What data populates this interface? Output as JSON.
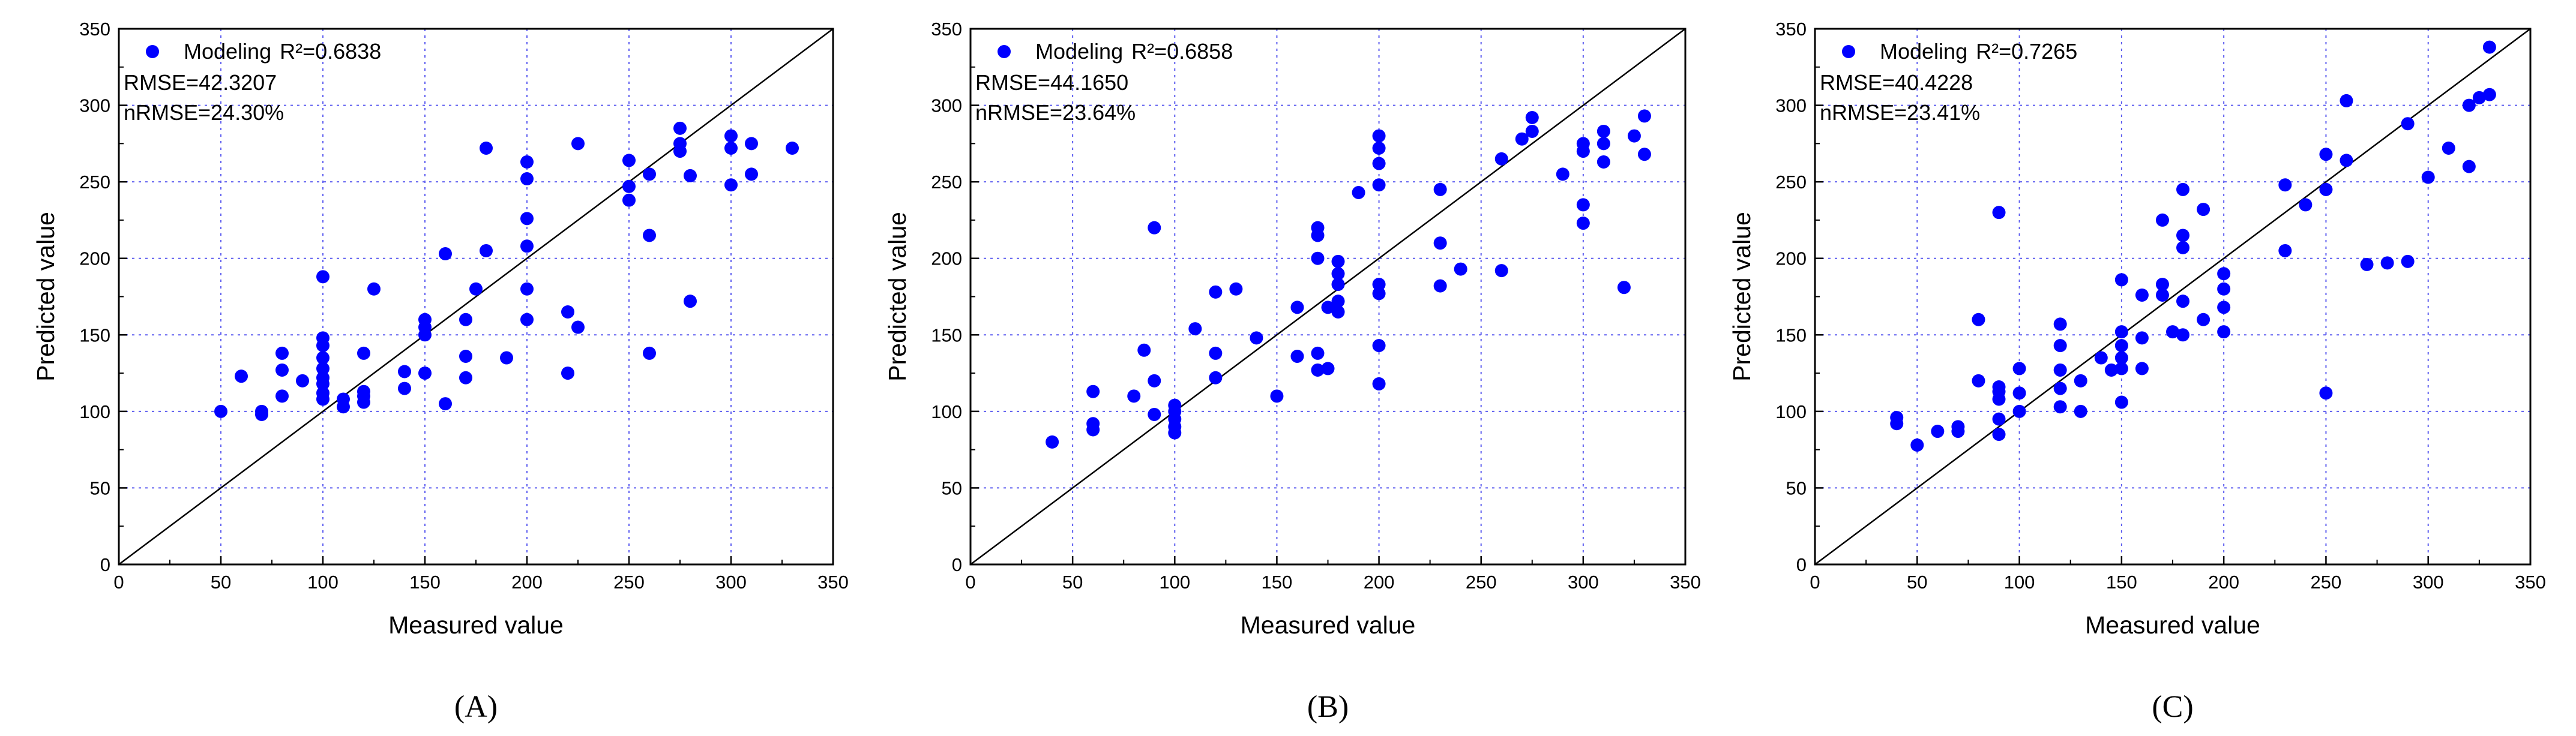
{
  "chart_data": [
    {
      "type": "scatter",
      "panel_label": "(A)",
      "xlabel": "Measured value",
      "ylabel": "Predicted value",
      "xlim": [
        0,
        350
      ],
      "ylim": [
        0,
        350
      ],
      "xticks": [
        "0",
        "50",
        "100",
        "150",
        "200",
        "250",
        "300",
        "350"
      ],
      "yticks": [
        "0",
        "50",
        "100",
        "150",
        "200",
        "250",
        "300",
        "350"
      ],
      "grid": true,
      "legend": "top-left",
      "legend_label": "Modeling",
      "r2_text": "R²=0.6838",
      "rmse_text": "RMSE=42.3207",
      "nrmse_text": "nRMSE=24.30%",
      "marker_color": "#0000ff",
      "reference_line": "1:1",
      "points": [
        [
          50,
          100
        ],
        [
          60,
          123
        ],
        [
          70,
          98
        ],
        [
          70,
          100
        ],
        [
          80,
          110
        ],
        [
          80,
          127
        ],
        [
          80,
          138
        ],
        [
          90,
          120
        ],
        [
          100,
          108
        ],
        [
          100,
          112
        ],
        [
          100,
          118
        ],
        [
          100,
          122
        ],
        [
          100,
          128
        ],
        [
          100,
          135
        ],
        [
          100,
          143
        ],
        [
          100,
          148
        ],
        [
          100,
          188
        ],
        [
          110,
          103
        ],
        [
          110,
          108
        ],
        [
          120,
          106
        ],
        [
          120,
          110
        ],
        [
          120,
          113
        ],
        [
          120,
          138
        ],
        [
          125,
          180
        ],
        [
          140,
          115
        ],
        [
          140,
          126
        ],
        [
          150,
          125
        ],
        [
          150,
          150
        ],
        [
          150,
          155
        ],
        [
          150,
          160
        ],
        [
          160,
          105
        ],
        [
          160,
          203
        ],
        [
          170,
          122
        ],
        [
          170,
          136
        ],
        [
          170,
          160
        ],
        [
          175,
          180
        ],
        [
          180,
          205
        ],
        [
          180,
          272
        ],
        [
          190,
          135
        ],
        [
          200,
          160
        ],
        [
          200,
          180
        ],
        [
          200,
          208
        ],
        [
          200,
          226
        ],
        [
          200,
          252
        ],
        [
          200,
          263
        ],
        [
          220,
          125
        ],
        [
          220,
          165
        ],
        [
          225,
          155
        ],
        [
          225,
          275
        ],
        [
          250,
          238
        ],
        [
          250,
          247
        ],
        [
          250,
          264
        ],
        [
          260,
          138
        ],
        [
          260,
          215
        ],
        [
          260,
          255
        ],
        [
          275,
          270
        ],
        [
          275,
          275
        ],
        [
          275,
          285
        ],
        [
          280,
          172
        ],
        [
          280,
          254
        ],
        [
          300,
          248
        ],
        [
          300,
          272
        ],
        [
          300,
          280
        ],
        [
          310,
          255
        ],
        [
          310,
          275
        ],
        [
          330,
          272
        ]
      ]
    },
    {
      "type": "scatter",
      "panel_label": "(B)",
      "xlabel": "Measured value",
      "ylabel": "Predicted value",
      "xlim": [
        0,
        350
      ],
      "ylim": [
        0,
        350
      ],
      "xticks": [
        "0",
        "50",
        "100",
        "150",
        "200",
        "250",
        "300",
        "350"
      ],
      "yticks": [
        "0",
        "50",
        "100",
        "150",
        "200",
        "250",
        "300",
        "350"
      ],
      "grid": true,
      "legend": "top-left",
      "legend_label": "Modeling",
      "r2_text": "R²=0.6858",
      "rmse_text": "RMSE=44.1650",
      "nrmse_text": "nRMSE=23.64%",
      "marker_color": "#0000ff",
      "reference_line": "1:1",
      "points": [
        [
          40,
          80
        ],
        [
          60,
          88
        ],
        [
          60,
          92
        ],
        [
          60,
          113
        ],
        [
          80,
          110
        ],
        [
          85,
          140
        ],
        [
          90,
          98
        ],
        [
          90,
          220
        ],
        [
          90,
          120
        ],
        [
          100,
          86
        ],
        [
          100,
          90
        ],
        [
          100,
          95
        ],
        [
          100,
          100
        ],
        [
          100,
          104
        ],
        [
          110,
          154
        ],
        [
          120,
          122
        ],
        [
          120,
          138
        ],
        [
          120,
          178
        ],
        [
          130,
          180
        ],
        [
          140,
          148
        ],
        [
          150,
          110
        ],
        [
          160,
          136
        ],
        [
          160,
          168
        ],
        [
          170,
          127
        ],
        [
          170,
          138
        ],
        [
          170,
          200
        ],
        [
          170,
          215
        ],
        [
          170,
          220
        ],
        [
          175,
          128
        ],
        [
          175,
          168
        ],
        [
          180,
          165
        ],
        [
          180,
          172
        ],
        [
          180,
          183
        ],
        [
          180,
          190
        ],
        [
          180,
          198
        ],
        [
          190,
          243
        ],
        [
          200,
          118
        ],
        [
          200,
          143
        ],
        [
          200,
          177
        ],
        [
          200,
          183
        ],
        [
          200,
          248
        ],
        [
          200,
          262
        ],
        [
          200,
          272
        ],
        [
          200,
          280
        ],
        [
          230,
          182
        ],
        [
          230,
          210
        ],
        [
          230,
          245
        ],
        [
          240,
          193
        ],
        [
          260,
          192
        ],
        [
          260,
          265
        ],
        [
          270,
          278
        ],
        [
          275,
          283
        ],
        [
          275,
          292
        ],
        [
          290,
          255
        ],
        [
          300,
          223
        ],
        [
          300,
          235
        ],
        [
          300,
          270
        ],
        [
          300,
          275
        ],
        [
          310,
          263
        ],
        [
          310,
          275
        ],
        [
          310,
          283
        ],
        [
          320,
          181
        ],
        [
          325,
          280
        ],
        [
          330,
          268
        ],
        [
          330,
          293
        ]
      ]
    },
    {
      "type": "scatter",
      "panel_label": "(C)",
      "xlabel": "Measured value",
      "ylabel": "Predicted value",
      "xlim": [
        0,
        350
      ],
      "ylim": [
        0,
        350
      ],
      "xticks": [
        "0",
        "50",
        "100",
        "150",
        "200",
        "250",
        "300",
        "350"
      ],
      "yticks": [
        "0",
        "50",
        "100",
        "150",
        "200",
        "250",
        "300",
        "350"
      ],
      "grid": true,
      "legend": "top-left",
      "legend_label": "Modeling",
      "r2_text": "R²=0.7265",
      "rmse_text": "RMSE=40.4228",
      "nrmse_text": "nRMSE=23.41%",
      "marker_color": "#0000ff",
      "reference_line": "1:1",
      "points": [
        [
          40,
          92
        ],
        [
          40,
          96
        ],
        [
          50,
          78
        ],
        [
          60,
          87
        ],
        [
          70,
          87
        ],
        [
          70,
          90
        ],
        [
          80,
          120
        ],
        [
          80,
          160
        ],
        [
          90,
          85
        ],
        [
          90,
          95
        ],
        [
          90,
          108
        ],
        [
          90,
          113
        ],
        [
          90,
          116
        ],
        [
          90,
          230
        ],
        [
          100,
          100
        ],
        [
          100,
          112
        ],
        [
          100,
          128
        ],
        [
          120,
          103
        ],
        [
          120,
          115
        ],
        [
          120,
          127
        ],
        [
          120,
          143
        ],
        [
          120,
          157
        ],
        [
          130,
          100
        ],
        [
          130,
          120
        ],
        [
          140,
          135
        ],
        [
          145,
          127
        ],
        [
          150,
          106
        ],
        [
          150,
          128
        ],
        [
          150,
          135
        ],
        [
          150,
          143
        ],
        [
          150,
          152
        ],
        [
          150,
          186
        ],
        [
          160,
          128
        ],
        [
          160,
          148
        ],
        [
          160,
          176
        ],
        [
          170,
          176
        ],
        [
          170,
          183
        ],
        [
          170,
          225
        ],
        [
          175,
          152
        ],
        [
          180,
          150
        ],
        [
          180,
          172
        ],
        [
          180,
          207
        ],
        [
          180,
          215
        ],
        [
          180,
          245
        ],
        [
          190,
          160
        ],
        [
          190,
          232
        ],
        [
          200,
          152
        ],
        [
          200,
          168
        ],
        [
          200,
          180
        ],
        [
          200,
          190
        ],
        [
          230,
          205
        ],
        [
          230,
          248
        ],
        [
          240,
          235
        ],
        [
          250,
          112
        ],
        [
          250,
          245
        ],
        [
          250,
          268
        ],
        [
          260,
          264
        ],
        [
          260,
          303
        ],
        [
          270,
          196
        ],
        [
          280,
          197
        ],
        [
          290,
          198
        ],
        [
          290,
          288
        ],
        [
          300,
          253
        ],
        [
          310,
          272
        ],
        [
          320,
          260
        ],
        [
          320,
          300
        ],
        [
          325,
          305
        ],
        [
          330,
          307
        ],
        [
          330,
          338
        ]
      ]
    }
  ]
}
